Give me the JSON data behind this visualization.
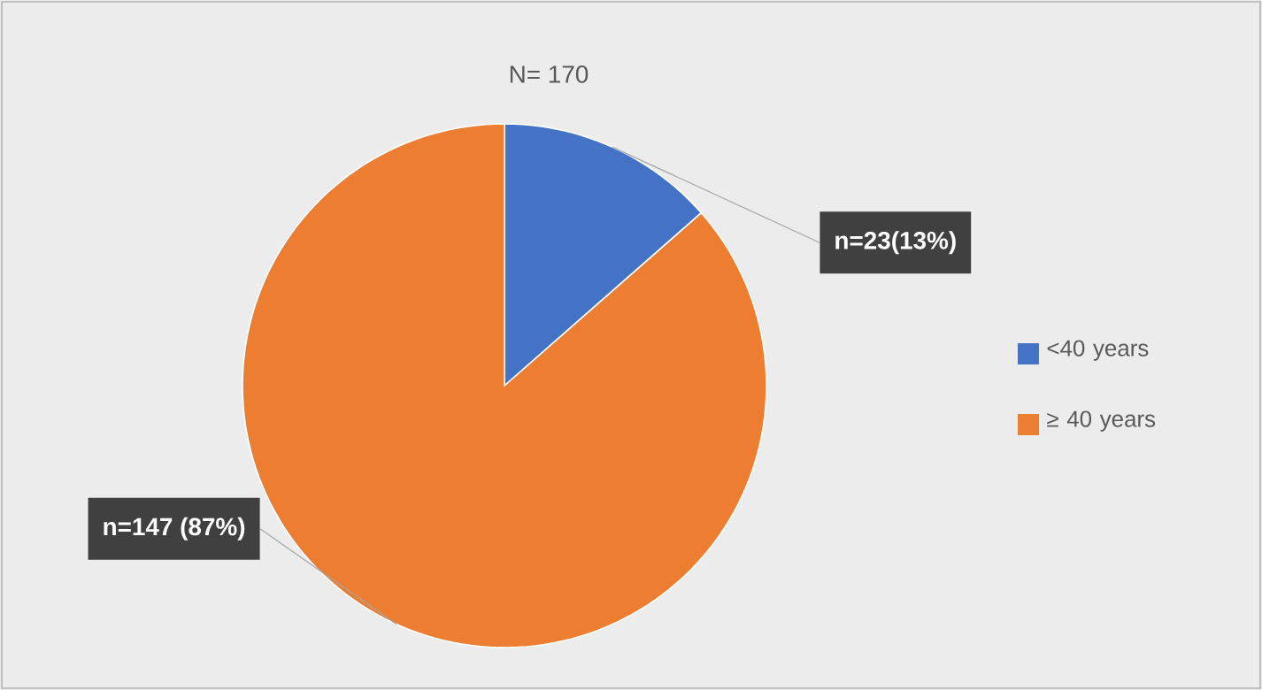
{
  "chart_data": {
    "type": "pie",
    "title": "N= 170",
    "categories": [
      "<40 years",
      "≥ 40 years"
    ],
    "values": [
      23,
      147
    ],
    "colors": [
      "#4472c4",
      "#ed7d31"
    ],
    "value_labels": [
      "n=23(13%)",
      "n=147 (87%)"
    ],
    "legend": "right"
  }
}
